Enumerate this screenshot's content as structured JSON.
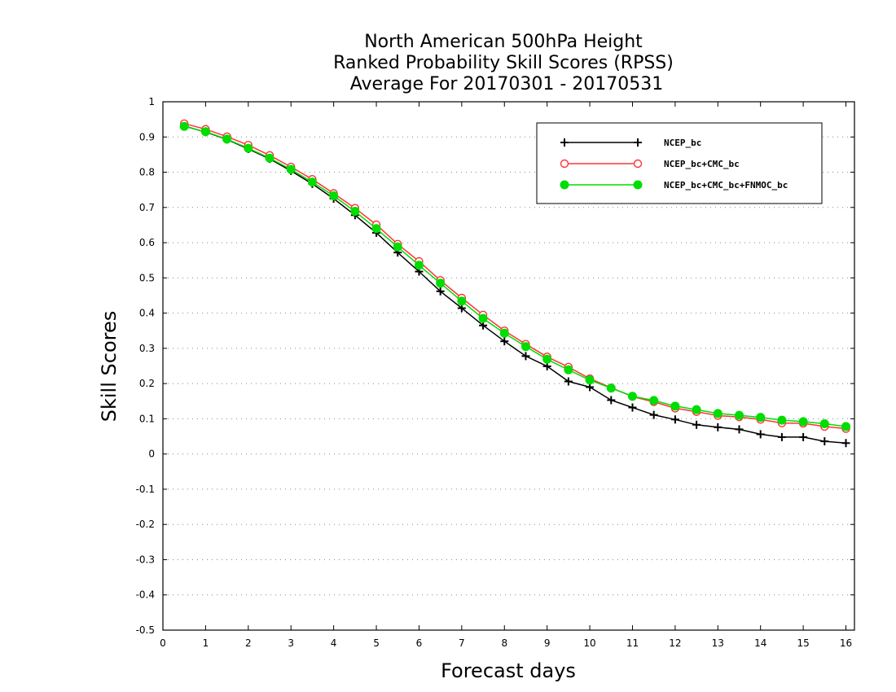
{
  "chart_data": {
    "type": "line",
    "title_lines": [
      "North American 500hPa Height",
      "Ranked Probability Skill Scores (RPSS)",
      "Average For 20170301 - 20170531"
    ],
    "xlabel": "Forecast days",
    "ylabel": "Skill Scores",
    "xlim": [
      0,
      16.2
    ],
    "ylim": [
      -0.5,
      1
    ],
    "x_ticks": [
      0,
      1,
      2,
      3,
      4,
      5,
      6,
      7,
      8,
      9,
      10,
      11,
      12,
      13,
      14,
      15,
      16
    ],
    "y_ticks": [
      -0.5,
      -0.4,
      -0.3,
      -0.2,
      -0.1,
      0,
      0.1,
      0.2,
      0.3,
      0.4,
      0.5,
      0.6,
      0.7,
      0.8,
      0.9,
      1
    ],
    "y_tick_labels": [
      "-0.5",
      "-0.4",
      "-0.3",
      "-0.2",
      "-0.1",
      "0",
      "0.1",
      "0.2",
      "0.3",
      "0.4",
      "0.5",
      "0.6",
      "0.7",
      "0.8",
      "0.9",
      "1"
    ],
    "grid": true,
    "legend_position": "top-right",
    "x": [
      0.5,
      1,
      1.5,
      2,
      2.5,
      3,
      3.5,
      4,
      4.5,
      5,
      5.5,
      6,
      6.5,
      7,
      7.5,
      8,
      8.5,
      9,
      9.5,
      10,
      10.5,
      11,
      11.5,
      12,
      12.5,
      13,
      13.5,
      14,
      14.5,
      15,
      15.5,
      16
    ],
    "series": [
      {
        "name": "NCEP_bc",
        "color": "#000000",
        "marker": "plus",
        "values": [
          0.931,
          0.914,
          0.893,
          0.866,
          0.838,
          0.804,
          0.767,
          0.725,
          0.678,
          0.628,
          0.572,
          0.518,
          0.462,
          0.414,
          0.365,
          0.32,
          0.278,
          0.249,
          0.206,
          0.19,
          0.153,
          0.132,
          0.111,
          0.098,
          0.083,
          0.076,
          0.07,
          0.056,
          0.048,
          0.048,
          0.036,
          0.031
        ]
      },
      {
        "name": "NCEP_bc+CMC_bc",
        "color": "#ff3333",
        "marker": "open-circle",
        "values": [
          0.938,
          0.922,
          0.901,
          0.877,
          0.848,
          0.815,
          0.78,
          0.74,
          0.698,
          0.651,
          0.596,
          0.547,
          0.493,
          0.443,
          0.395,
          0.35,
          0.312,
          0.276,
          0.247,
          0.214,
          0.188,
          0.163,
          0.148,
          0.13,
          0.12,
          0.109,
          0.105,
          0.098,
          0.088,
          0.087,
          0.078,
          0.072
        ]
      },
      {
        "name": "NCEP_bc+CMC_bc+FNMOC_bc",
        "color": "#00dd00",
        "marker": "filled-circle",
        "values": [
          0.93,
          0.915,
          0.894,
          0.868,
          0.84,
          0.808,
          0.772,
          0.733,
          0.689,
          0.64,
          0.588,
          0.536,
          0.485,
          0.434,
          0.385,
          0.343,
          0.305,
          0.269,
          0.239,
          0.21,
          0.187,
          0.164,
          0.152,
          0.136,
          0.126,
          0.115,
          0.11,
          0.104,
          0.096,
          0.092,
          0.086,
          0.078
        ]
      }
    ]
  }
}
